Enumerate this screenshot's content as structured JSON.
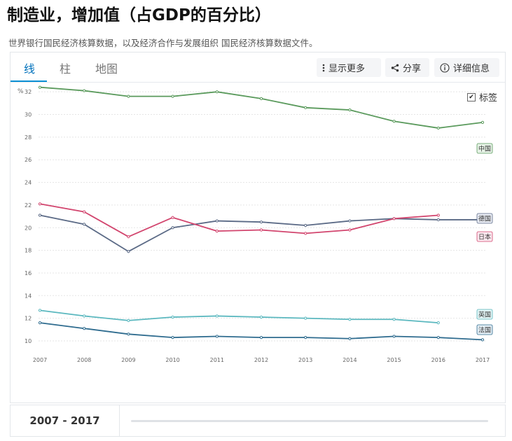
{
  "header": {
    "title": "制造业，增加值（占GDP的百分比）",
    "subtitle": "世界银行国民经济核算数据，以及经济合作与发展组织 国民经济核算数据文件。"
  },
  "tabs": [
    {
      "label": "线",
      "active": true
    },
    {
      "label": "柱",
      "active": false
    },
    {
      "label": "地图",
      "active": false
    }
  ],
  "toolbar": {
    "more_label": "显示更多",
    "share_label": "分享",
    "details_label": "详细信息"
  },
  "labels_toggle": {
    "label": "标签",
    "checked": true
  },
  "footer": {
    "range_label": "2007 - 2017"
  },
  "chart_data": {
    "type": "line",
    "ylabel": "%",
    "ylim": [
      10,
      33
    ],
    "yticks": [
      10,
      12,
      14,
      16,
      18,
      20,
      22,
      24,
      26,
      28,
      30,
      32
    ],
    "x": [
      2007,
      2008,
      2009,
      2010,
      2011,
      2012,
      2013,
      2014,
      2015,
      2016,
      2017
    ],
    "grid": true,
    "series": [
      {
        "name": "中国",
        "color": "#5a9a5c",
        "label_bg": "#e6f2e6",
        "values": [
          32.4,
          32.1,
          31.6,
          31.6,
          32.0,
          31.4,
          30.6,
          30.4,
          29.4,
          28.8,
          29.3
        ]
      },
      {
        "name": "德国",
        "color": "#5b6a86",
        "label_bg": "#e8ebf3",
        "values": [
          21.1,
          20.3,
          17.9,
          20.0,
          20.6,
          20.5,
          20.2,
          20.6,
          20.8,
          20.7,
          20.7
        ]
      },
      {
        "name": "日本",
        "color": "#d2456e",
        "label_bg": "#fbe7ee",
        "values": [
          22.1,
          21.4,
          19.2,
          20.9,
          19.7,
          19.8,
          19.5,
          19.8,
          20.8,
          21.1,
          null
        ]
      },
      {
        "name": "英国",
        "color": "#5bb8bf",
        "label_bg": "#e2f4f5",
        "values": [
          12.7,
          12.2,
          11.8,
          12.1,
          12.2,
          12.1,
          12.0,
          11.9,
          11.9,
          11.6,
          null
        ]
      },
      {
        "name": "法国",
        "color": "#2f6c8f",
        "label_bg": "#e1ecf3",
        "values": [
          11.6,
          11.1,
          10.6,
          10.3,
          10.4,
          10.3,
          10.3,
          10.2,
          10.4,
          10.3,
          10.1
        ]
      }
    ]
  }
}
